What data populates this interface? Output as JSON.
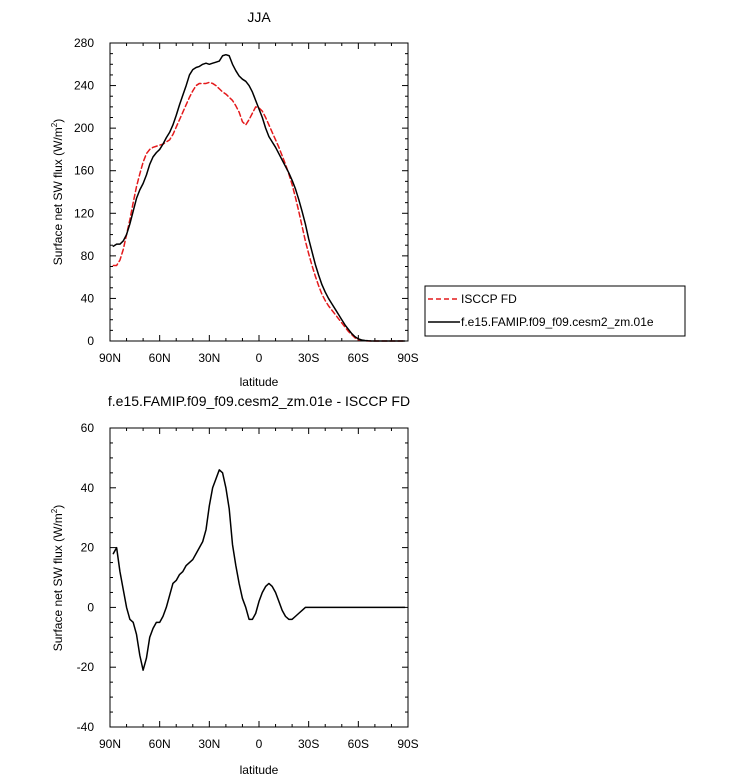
{
  "chart_data": [
    {
      "type": "line",
      "title": "JJA",
      "xlabel": "latitude",
      "ylabel": "Surface net SW flux (W/m",
      "ylabel_sup": "2",
      "ylabel_close": ")",
      "xlim": [
        90,
        -90
      ],
      "ylim": [
        0,
        280
      ],
      "xticks": [
        90,
        60,
        30,
        0,
        -30,
        -60,
        -90
      ],
      "xtick_labels": [
        "90N",
        "60N",
        "30N",
        "0",
        "30S",
        "60S",
        "90S"
      ],
      "yticks": [
        0,
        40,
        80,
        120,
        160,
        200,
        240,
        280
      ],
      "ytick_labels": [
        "0",
        "40",
        "80",
        "120",
        "160",
        "200",
        "240",
        "280"
      ],
      "legend": {
        "placement": "right",
        "entries": [
          "ISCCP FD",
          "f.e15.FAMIP.f09_f09.cesm2_zm.01e"
        ]
      },
      "series": [
        {
          "name": "ISCCP FD",
          "color": "#e41a1c",
          "dash": "dashed",
          "x": [
            88,
            86,
            84,
            82,
            80,
            78,
            76,
            74,
            72,
            70,
            68,
            66,
            64,
            62,
            60,
            58,
            56,
            54,
            52,
            50,
            48,
            46,
            44,
            42,
            40,
            38,
            36,
            34,
            32,
            30,
            28,
            26,
            24,
            22,
            20,
            18,
            16,
            14,
            12,
            10,
            8,
            6,
            4,
            2,
            0,
            -2,
            -4,
            -6,
            -8,
            -10,
            -12,
            -14,
            -16,
            -18,
            -20,
            -22,
            -24,
            -26,
            -28,
            -30,
            -32,
            -34,
            -36,
            -38,
            -40,
            -42,
            -44,
            -46,
            -48,
            -50,
            -52,
            -54,
            -56,
            -58,
            -60,
            -62,
            -64,
            -66,
            -68,
            -70,
            -72,
            -74,
            -76,
            -78,
            -80,
            -82,
            -84,
            -86,
            -88
          ],
          "y": [
            71,
            71,
            76,
            86,
            100,
            114,
            130,
            145,
            157,
            168,
            176,
            180,
            182,
            183,
            184,
            185,
            187,
            189,
            194,
            201,
            208,
            215,
            222,
            229,
            235,
            240,
            242,
            242,
            242,
            243,
            242,
            240,
            237,
            234,
            232,
            229,
            226,
            221,
            215,
            206,
            203,
            208,
            214,
            220,
            219,
            216,
            210,
            203,
            196,
            189,
            182,
            174,
            166,
            157,
            147,
            135,
            122,
            108,
            94,
            82,
            71,
            61,
            52,
            44,
            38,
            33,
            29,
            25,
            21,
            17,
            13,
            9,
            6,
            3,
            1,
            0.5,
            0.2,
            0,
            0,
            0,
            0,
            0,
            0,
            0,
            0,
            0,
            0,
            0,
            0
          ]
        },
        {
          "name": "f.e15.FAMIP.f09_f09.cesm2_zm.01e",
          "color": "#000000",
          "dash": "solid",
          "x": [
            88,
            86,
            84,
            82,
            80,
            78,
            76,
            74,
            72,
            70,
            68,
            66,
            64,
            62,
            60,
            58,
            56,
            54,
            52,
            50,
            48,
            46,
            44,
            42,
            40,
            38,
            36,
            34,
            32,
            30,
            28,
            26,
            24,
            22,
            20,
            18,
            16,
            14,
            12,
            10,
            8,
            6,
            4,
            2,
            0,
            -2,
            -4,
            -6,
            -8,
            -10,
            -12,
            -14,
            -16,
            -18,
            -20,
            -22,
            -24,
            -26,
            -28,
            -30,
            -32,
            -34,
            -36,
            -38,
            -40,
            -42,
            -44,
            -46,
            -48,
            -50,
            -52,
            -54,
            -56,
            -58,
            -60,
            -62,
            -64,
            -66,
            -68,
            -70,
            -72,
            -74,
            -76,
            -78,
            -80,
            -82,
            -84,
            -86,
            -88
          ],
          "y": [
            89,
            91,
            91,
            94,
            100,
            110,
            122,
            134,
            142,
            148,
            156,
            166,
            173,
            177,
            180,
            185,
            191,
            196,
            203,
            212,
            222,
            231,
            240,
            250,
            255,
            257,
            258,
            260,
            261,
            260,
            261,
            262,
            263,
            268,
            269,
            268,
            260,
            254,
            249,
            246,
            244,
            240,
            234,
            226,
            218,
            210,
            200,
            192,
            187,
            182,
            176,
            170,
            164,
            158,
            151,
            143,
            133,
            122,
            110,
            96,
            84,
            72,
            62,
            53,
            46,
            40,
            35,
            30,
            25,
            20,
            15,
            11,
            7,
            4,
            2,
            1,
            0.5,
            0.2,
            0,
            0,
            0,
            0,
            0,
            0,
            0,
            0,
            0,
            0,
            0
          ]
        }
      ]
    },
    {
      "type": "line",
      "title": "f.e15.FAMIP.f09_f09.cesm2_zm.01e - ISCCP FD",
      "xlabel": "latitude",
      "ylabel": "Surface net SW flux (W/m",
      "ylabel_sup": "2",
      "ylabel_close": ")",
      "xlim": [
        90,
        -90
      ],
      "ylim": [
        -40,
        60
      ],
      "xticks": [
        90,
        60,
        30,
        0,
        -30,
        -60,
        -90
      ],
      "xtick_labels": [
        "90N",
        "60N",
        "30N",
        "0",
        "30S",
        "60S",
        "90S"
      ],
      "yticks": [
        -40,
        -20,
        0,
        20,
        40,
        60
      ],
      "ytick_labels": [
        "-40",
        "-20",
        "0",
        "20",
        "40",
        "60"
      ],
      "series": [
        {
          "color": "#000000",
          "dash": "solid",
          "x": [
            88,
            86,
            84,
            82,
            80,
            78,
            76,
            74,
            72,
            70,
            68,
            66,
            64,
            62,
            60,
            58,
            56,
            54,
            52,
            50,
            48,
            46,
            44,
            42,
            40,
            38,
            36,
            34,
            32,
            30,
            28,
            26,
            24,
            22,
            20,
            18,
            16,
            14,
            12,
            10,
            8,
            6,
            4,
            2,
            0,
            -2,
            -4,
            -6,
            -8,
            -10,
            -12,
            -14,
            -16,
            -18,
            -20,
            -22,
            -24,
            -26,
            -28,
            -30,
            -32,
            -34,
            -36,
            -38,
            -40,
            -42,
            -44,
            -46,
            -48,
            -50,
            -52,
            -54,
            -56,
            -58,
            -60,
            -62,
            -64,
            -66,
            -68,
            -70,
            -72,
            -74,
            -76,
            -78,
            -80,
            -82,
            -84,
            -86,
            -88
          ],
          "y": [
            18,
            20,
            12,
            6,
            0,
            -4,
            -5,
            -9,
            -16,
            -21,
            -17,
            -10,
            -7,
            -5,
            -5,
            -3,
            0,
            4,
            8,
            9,
            11,
            12,
            14,
            15,
            16,
            18,
            20,
            22,
            26,
            34,
            40,
            43,
            46,
            45,
            40,
            33,
            21,
            14,
            8,
            3,
            0,
            -4,
            -4,
            -2,
            2,
            5,
            7,
            8,
            7,
            5,
            2,
            -1,
            -3,
            -4,
            -4,
            -3,
            -2,
            -1,
            0,
            0,
            0,
            0,
            0,
            0,
            0,
            0,
            0,
            0,
            0,
            0,
            0,
            0,
            0,
            0,
            0,
            0,
            0,
            0,
            0,
            0,
            0,
            0,
            0,
            0,
            0,
            0,
            0,
            0,
            0
          ]
        }
      ]
    }
  ]
}
